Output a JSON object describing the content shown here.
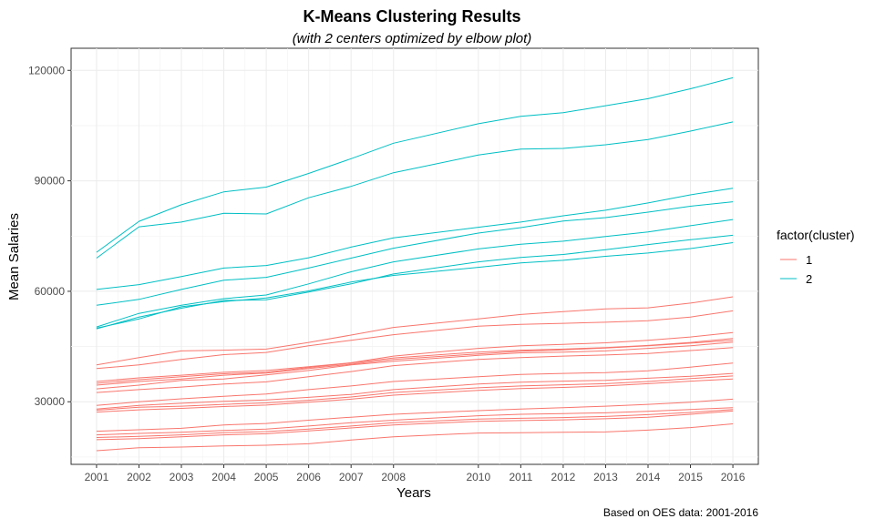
{
  "chart_data": {
    "type": "line",
    "title": "K-Means Clustering Results",
    "subtitle": "(with 2 centers optimized by elbow plot)",
    "xlabel": "Years",
    "ylabel": "Mean Salaries",
    "caption": "Based on OES data: 2001-2016",
    "legend_title": "factor(cluster)",
    "legend_position": "right",
    "grid": true,
    "xlim": [
      2000.4,
      2016.6
    ],
    "ylim": [
      13000,
      126000
    ],
    "x": [
      2001,
      2002,
      2003,
      2004,
      2005,
      2006,
      2007,
      2008,
      2010,
      2011,
      2012,
      2013,
      2014,
      2015,
      2016
    ],
    "x_ticks": [
      "2001",
      "2002",
      "2003",
      "2004",
      "2005",
      "2006",
      "2007",
      "2008",
      "2010",
      "2011",
      "2012",
      "2013",
      "2014",
      "2015",
      "2016"
    ],
    "y_ticks": [
      30000,
      60000,
      90000,
      120000
    ],
    "y_tick_labels": [
      "30000",
      "60000",
      "90000",
      "120000"
    ],
    "clusters": [
      {
        "label": "1",
        "color": "#F8766D"
      },
      {
        "label": "2",
        "color": "#00BFC4"
      }
    ],
    "series": [
      {
        "cluster": "2",
        "values": [
          70600,
          79000,
          83500,
          87000,
          88300,
          92000,
          96000,
          100200,
          105500,
          107500,
          108500,
          110400,
          112300,
          115000,
          118000
        ]
      },
      {
        "cluster": "2",
        "values": [
          69000,
          77500,
          78800,
          81200,
          81000,
          85400,
          88500,
          92200,
          97000,
          98600,
          98800,
          99800,
          101200,
          103500,
          106000
        ]
      },
      {
        "cluster": "2",
        "values": [
          60500,
          61800,
          64000,
          66300,
          67000,
          69100,
          72000,
          74500,
          77400,
          78800,
          80500,
          82000,
          84000,
          86200,
          88000
        ]
      },
      {
        "cluster": "2",
        "values": [
          56200,
          57800,
          60500,
          63000,
          63800,
          66300,
          69000,
          71700,
          75800,
          77300,
          79100,
          80000,
          81500,
          83100,
          84300
        ]
      },
      {
        "cluster": "2",
        "values": [
          50300,
          54000,
          56200,
          58000,
          59000,
          62000,
          65300,
          68000,
          71500,
          72800,
          73600,
          74900,
          76100,
          77800,
          79500
        ]
      },
      {
        "cluster": "2",
        "values": [
          49800,
          53000,
          55400,
          57500,
          57700,
          59800,
          62000,
          64700,
          68000,
          69200,
          70000,
          71300,
          72700,
          74000,
          75200
        ]
      },
      {
        "cluster": "2",
        "values": [
          50000,
          52500,
          55800,
          57200,
          58200,
          60100,
          62500,
          64300,
          66500,
          67700,
          68400,
          69500,
          70400,
          71600,
          73200
        ]
      },
      {
        "cluster": "1",
        "values": [
          40000,
          42000,
          43800,
          44000,
          44300,
          46100,
          48100,
          50200,
          52500,
          53700,
          54500,
          55200,
          55500,
          56800,
          58500
        ]
      },
      {
        "cluster": "1",
        "values": [
          39000,
          40000,
          41500,
          42800,
          43400,
          45200,
          46700,
          48200,
          50500,
          51000,
          51300,
          51600,
          52000,
          53000,
          54700
        ]
      },
      {
        "cluster": "1",
        "values": [
          35500,
          36500,
          37200,
          38000,
          38500,
          39500,
          40600,
          42400,
          44500,
          45200,
          45600,
          46000,
          46700,
          47600,
          48800
        ]
      },
      {
        "cluster": "1",
        "values": [
          35000,
          36000,
          36800,
          37600,
          38000,
          39300,
          40500,
          41900,
          43500,
          44000,
          44300,
          44700,
          45300,
          46100,
          47200
        ]
      },
      {
        "cluster": "1",
        "values": [
          34500,
          35500,
          36200,
          37200,
          37800,
          39000,
          40200,
          41500,
          43000,
          43700,
          44100,
          44600,
          45200,
          45900,
          46700
        ]
      },
      {
        "cluster": "1",
        "values": [
          33500,
          34500,
          35800,
          36200,
          37300,
          38500,
          40000,
          41000,
          42600,
          43300,
          43500,
          43800,
          44500,
          45200,
          46200
        ]
      },
      {
        "cluster": "1",
        "values": [
          32500,
          33300,
          34000,
          34800,
          35400,
          36800,
          38200,
          39800,
          41500,
          42000,
          42400,
          42700,
          43100,
          43900,
          44700
        ]
      },
      {
        "cluster": "1",
        "values": [
          29000,
          30000,
          30800,
          31500,
          32100,
          33300,
          34300,
          35500,
          36800,
          37400,
          37700,
          37900,
          38400,
          39400,
          40500
        ]
      },
      {
        "cluster": "1",
        "values": [
          28000,
          29000,
          29600,
          30100,
          30500,
          31200,
          32000,
          33300,
          34800,
          35300,
          35600,
          35800,
          36400,
          36900,
          37700
        ]
      },
      {
        "cluster": "1",
        "values": [
          27700,
          28500,
          28800,
          29300,
          29700,
          30400,
          31300,
          32500,
          33800,
          34300,
          34600,
          34900,
          35500,
          36300,
          37000
        ]
      },
      {
        "cluster": "1",
        "values": [
          27200,
          27800,
          28200,
          28700,
          29100,
          29900,
          30700,
          31800,
          33100,
          33600,
          33900,
          34300,
          34900,
          35600,
          36200
        ]
      },
      {
        "cluster": "1",
        "values": [
          22000,
          22400,
          22800,
          23700,
          24100,
          25000,
          25800,
          26600,
          27600,
          28000,
          28400,
          28800,
          29300,
          29900,
          30700
        ]
      },
      {
        "cluster": "1",
        "values": [
          21000,
          21400,
          21700,
          22200,
          22600,
          23400,
          24300,
          25000,
          26200,
          26600,
          26800,
          27000,
          27400,
          27900,
          28400
        ]
      },
      {
        "cluster": "1",
        "values": [
          20300,
          20600,
          21000,
          21600,
          21900,
          22600,
          23400,
          24300,
          25300,
          25500,
          25700,
          26000,
          26500,
          27100,
          27900
        ]
      },
      {
        "cluster": "1",
        "values": [
          19700,
          20000,
          20500,
          21000,
          21300,
          22100,
          22900,
          23700,
          24700,
          24900,
          25100,
          25400,
          25800,
          26600,
          27500
        ]
      },
      {
        "cluster": "1",
        "values": [
          16700,
          17500,
          17700,
          18000,
          18200,
          18600,
          19600,
          20500,
          21500,
          21600,
          21700,
          21800,
          22300,
          23000,
          24000
        ]
      }
    ]
  }
}
